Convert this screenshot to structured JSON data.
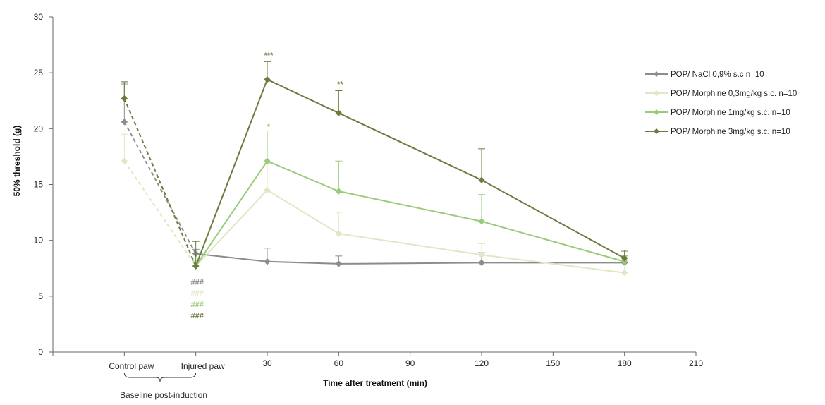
{
  "chart_data": {
    "type": "line",
    "xlabel": "Time after treatment (min)",
    "ylabel": "50% threshold (g)",
    "ylim": [
      0,
      30
    ],
    "yticks": [
      0,
      5,
      10,
      15,
      20,
      25,
      30
    ],
    "xlim": [
      -60,
      210
    ],
    "xticks": [
      30,
      60,
      90,
      120,
      150,
      180,
      210
    ],
    "baseline_categories": [
      "Control paw",
      "Injured paw"
    ],
    "baseline_x": [
      -30,
      0
    ],
    "baseline_group_label": "Baseline post-induction",
    "legend_position": "right",
    "series": [
      {
        "name": "POP/ NaCl 0,9% s.c n=10",
        "color": "#8c8c8c",
        "baseline": [
          20.6,
          8.8
        ],
        "baseline_err": [
          3.4,
          0.4
        ],
        "x": [
          0,
          30,
          60,
          120,
          180
        ],
        "values": [
          8.8,
          8.1,
          7.9,
          8.0,
          8.0
        ],
        "errors": [
          0.4,
          1.2,
          0.7,
          0.9,
          0.6
        ]
      },
      {
        "name": "POP/ Morphine 0,3mg/kg s.c. n=10",
        "color": "#dfe8c4",
        "baseline": [
          17.1,
          7.7
        ],
        "baseline_err": [
          2.4,
          0.4
        ],
        "x": [
          0,
          30,
          60,
          120,
          180
        ],
        "values": [
          7.7,
          14.5,
          10.6,
          8.7,
          7.1
        ],
        "errors": [
          0.4,
          2.4,
          1.9,
          1.0,
          1.1
        ]
      },
      {
        "name": "POP/ Morphine 1mg/kg s.c. n=10",
        "color": "#9acb78",
        "baseline": [
          22.7,
          7.7
        ],
        "baseline_err": [
          1.4,
          0.5
        ],
        "x": [
          0,
          30,
          60,
          120,
          180
        ],
        "values": [
          7.7,
          17.1,
          14.4,
          11.7,
          8.1
        ],
        "errors": [
          0.5,
          2.7,
          2.7,
          2.4,
          0.9
        ]
      },
      {
        "name": "POP/ Morphine 3mg/kg s.c. n=10",
        "color": "#6a7d3e",
        "baseline": [
          22.7,
          7.7
        ],
        "baseline_err": [
          1.5,
          2.2
        ],
        "x": [
          0,
          30,
          60,
          120,
          180
        ],
        "values": [
          7.7,
          24.4,
          21.4,
          15.4,
          8.4
        ],
        "errors": [
          2.2,
          1.6,
          2.0,
          2.8,
          0.7
        ]
      }
    ],
    "annotations": [
      {
        "text": "###",
        "series": 0,
        "x": 0,
        "y": 6.3
      },
      {
        "text": "###",
        "series": 1,
        "x": 0,
        "y": 5.3
      },
      {
        "text": "###",
        "series": 2,
        "x": 0,
        "y": 4.3
      },
      {
        "text": "###",
        "series": 3,
        "x": 0,
        "y": 3.3
      },
      {
        "text": "***",
        "series": 3,
        "x": 30,
        "y": 26.6
      },
      {
        "text": "**",
        "series": 3,
        "x": 60,
        "y": 24.0
      },
      {
        "text": "*",
        "series": 2,
        "x": 30,
        "y": 20.2
      }
    ]
  }
}
